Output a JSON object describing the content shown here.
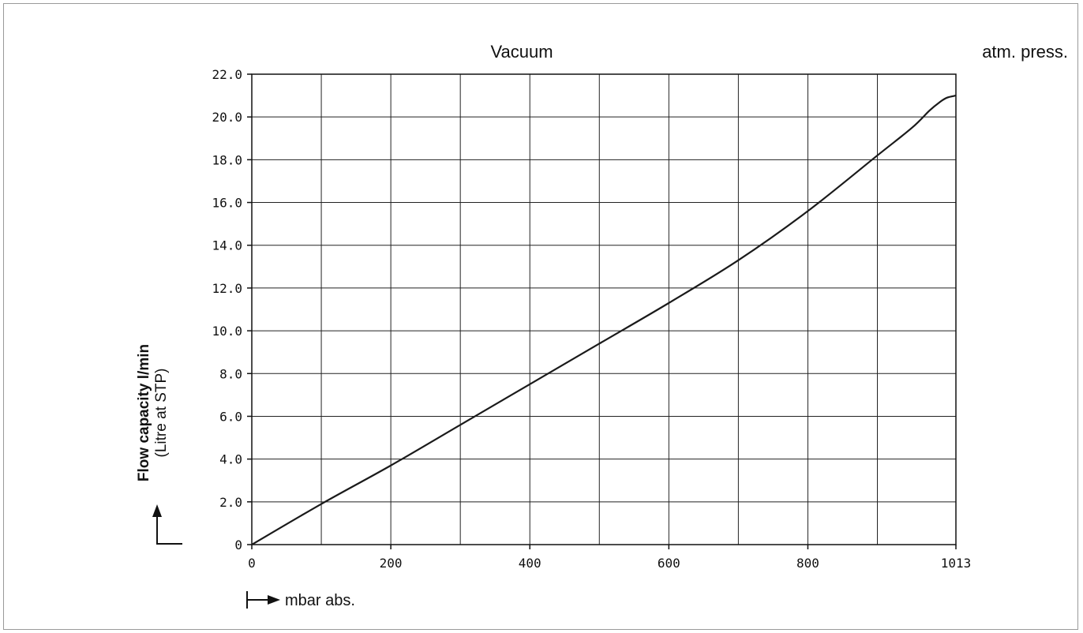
{
  "chart_data": {
    "type": "line",
    "top_left_label": "Vacuum",
    "top_right_label": "atm. press.",
    "ylabel_main": "Flow capacity l/min",
    "ylabel_sub": "(Litre at STP)",
    "xlabel": "mbar abs.",
    "x_ticks": [
      0,
      200,
      400,
      600,
      800,
      1013
    ],
    "x_tick_labels": [
      "0",
      "200",
      "400",
      "600",
      "800",
      "1013"
    ],
    "x_grid": [
      0,
      100,
      200,
      300,
      400,
      500,
      600,
      700,
      800,
      900,
      1013
    ],
    "y_ticks": [
      0,
      2,
      4,
      6,
      8,
      10,
      12,
      14,
      16,
      18,
      20,
      22
    ],
    "y_tick_labels": [
      "0",
      "2.0",
      "4.0",
      "6.0",
      "8.0",
      "10.0",
      "12.0",
      "14.0",
      "16.0",
      "18.0",
      "20.0",
      "22.0"
    ],
    "xlim": [
      0,
      1013
    ],
    "ylim": [
      0,
      22
    ],
    "grid": true,
    "series": [
      {
        "color": "#1a1a1a",
        "points": [
          [
            0,
            0
          ],
          [
            100,
            1.9
          ],
          [
            200,
            3.7
          ],
          [
            300,
            5.6
          ],
          [
            400,
            7.5
          ],
          [
            500,
            9.4
          ],
          [
            600,
            11.3
          ],
          [
            700,
            13.3
          ],
          [
            800,
            15.6
          ],
          [
            900,
            18.2
          ],
          [
            950,
            19.5
          ],
          [
            975,
            20.3
          ],
          [
            990,
            20.7
          ],
          [
            1000,
            20.9
          ],
          [
            1013,
            21.0
          ]
        ]
      }
    ]
  }
}
